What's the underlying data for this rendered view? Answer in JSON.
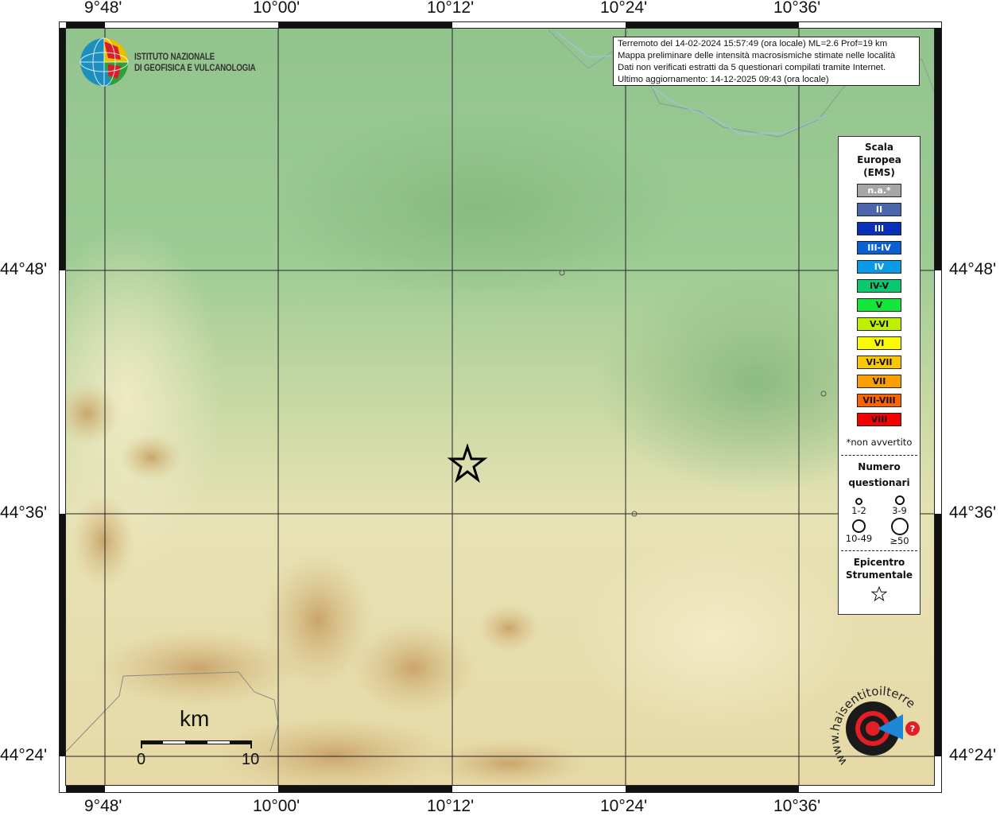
{
  "map": {
    "lon_labels": [
      "9°48'",
      "10°00'",
      "10°12'",
      "10°24'",
      "10°36'"
    ],
    "lat_labels": [
      "44°48'",
      "44°36'",
      "44°24'"
    ],
    "epicenter_icon": "star-icon",
    "scale_bar": {
      "unit": "km",
      "start": "0",
      "end": "10"
    }
  },
  "info": {
    "line1": "Terremoto del 14-02-2024 15:57:49 (ora locale) ML=2.6 Prof=19 km",
    "line2": "Mappa preliminare delle intensità macrosismiche stimate nelle località",
    "line3": "Dati non verificati estratti da 5 questionari compilati tramite Internet.",
    "line4": "Ultimo aggiornamento: 14-12-2025 09:43 (ora locale)"
  },
  "logo": {
    "line1": "ISTITUTO NAZIONALE",
    "line2": "DI GEOFISICA E VULCANOLOGIA"
  },
  "logo2": {
    "text": "www.haisentitoilterremoto.it"
  },
  "legend": {
    "title1": "Scala",
    "title2": "Europea",
    "title3": "(EMS)",
    "scale": [
      {
        "label": "n.a.*",
        "color": "#a6a6a6",
        "text": "#ffffff"
      },
      {
        "label": "II",
        "color": "#4b66ad",
        "text": "#ffffff"
      },
      {
        "label": "III",
        "color": "#0a2fb8",
        "text": "#ffffff"
      },
      {
        "label": "III-IV",
        "color": "#0a60d0",
        "text": "#ffffff"
      },
      {
        "label": "IV",
        "color": "#0a9ae6",
        "text": "#ffffff"
      },
      {
        "label": "IV-V",
        "color": "#0ac86e",
        "text": "#111111"
      },
      {
        "label": "V",
        "color": "#14e63c",
        "text": "#111111"
      },
      {
        "label": "V-VI",
        "color": "#bef000",
        "text": "#111111"
      },
      {
        "label": "VI",
        "color": "#fafa00",
        "text": "#111111"
      },
      {
        "label": "VI-VII",
        "color": "#fac800",
        "text": "#111111"
      },
      {
        "label": "VII",
        "color": "#fa9f00",
        "text": "#111111"
      },
      {
        "label": "VII-VIII",
        "color": "#fa6400",
        "text": "#111111"
      },
      {
        "label": "VIII",
        "color": "#f50000",
        "text": "#111111"
      }
    ],
    "note": "*non avvertito",
    "questionari_title1": "Numero",
    "questionari_title2": "questionari",
    "questionari": [
      "1-2",
      "3-9",
      "10-49",
      "≥50"
    ],
    "epicentro1": "Epicentro",
    "epicentro2": "Strumentale"
  }
}
